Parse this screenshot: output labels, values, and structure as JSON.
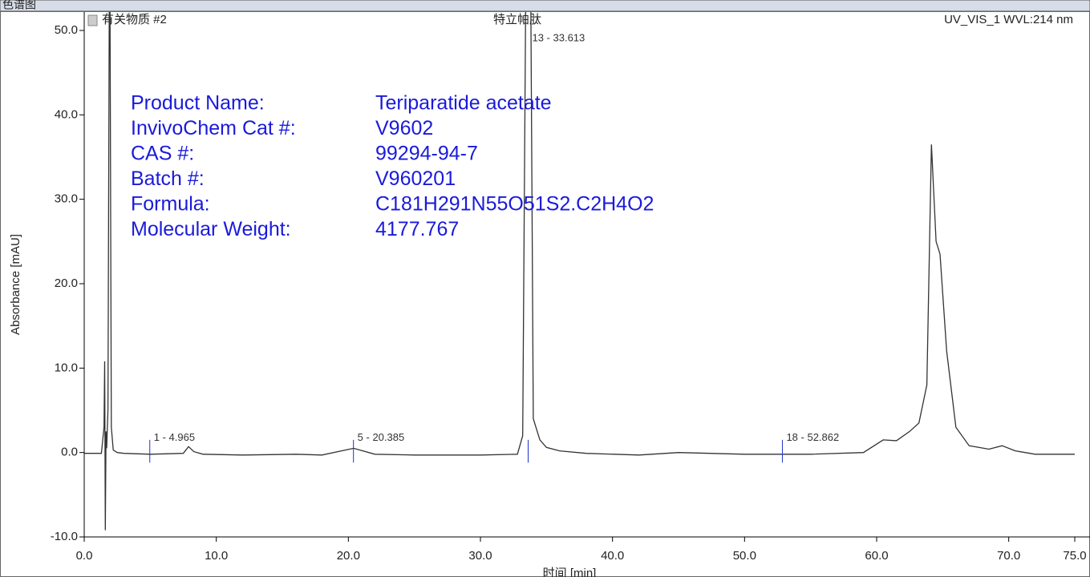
{
  "window_title": "色谱图",
  "chart_data": {
    "type": "line",
    "sample_label": "有关物质 #2",
    "title": "特立帕肽",
    "detector_label": "UV_VIS_1 WVL:214 nm",
    "x_label": "时间 [min]",
    "y_label": "Absorbance [mAU]",
    "xlim": [
      0,
      75
    ],
    "ylim": [
      -10,
      50
    ],
    "xticks": [
      {
        "value": 0,
        "label": "0.0"
      },
      {
        "value": 10,
        "label": "10.0"
      },
      {
        "value": 20,
        "label": "20.0"
      },
      {
        "value": 30,
        "label": "30.0"
      },
      {
        "value": 40,
        "label": "40.0"
      },
      {
        "value": 50,
        "label": "50.0"
      },
      {
        "value": 60,
        "label": "60.0"
      },
      {
        "value": 70,
        "label": "70.0"
      },
      {
        "value": 75,
        "label": "75.0"
      }
    ],
    "yticks": [
      {
        "value": -10,
        "label": "-10.0"
      },
      {
        "value": 0,
        "label": "0.0"
      },
      {
        "value": 10,
        "label": "10.0"
      },
      {
        "value": 20,
        "label": "20.0"
      },
      {
        "value": 30,
        "label": "30.0"
      },
      {
        "value": 40,
        "label": "40.0"
      },
      {
        "value": 50,
        "label": "50.0"
      }
    ],
    "series": [
      {
        "name": "UV_VIS_1",
        "color": "#333333",
        "x": [
          0,
          1.3,
          1.5,
          1.55,
          1.6,
          1.65,
          1.7,
          1.8,
          1.9,
          1.95,
          2.05,
          2.2,
          2.5,
          3,
          5,
          7.5,
          7.9,
          8.3,
          9,
          12,
          16,
          18,
          20.4,
          22,
          25,
          30,
          32.8,
          33.2,
          33.5,
          33.75,
          34,
          34.5,
          35,
          36,
          38,
          42,
          45,
          50,
          55,
          59,
          60.5,
          61.5,
          62.5,
          63.2,
          63.8,
          64.15,
          64.5,
          64.8,
          65.3,
          66,
          67,
          68.5,
          69.5,
          70.5,
          72,
          75
        ],
        "values": [
          -0.1,
          -0.1,
          3,
          10.8,
          -9.2,
          2.5,
          0.5,
          5,
          55,
          55,
          3,
          0.3,
          0,
          -0.1,
          -0.2,
          -0.1,
          0.7,
          0.1,
          -0.2,
          -0.3,
          -0.2,
          -0.3,
          0.5,
          -0.2,
          -0.3,
          -0.3,
          -0.2,
          2,
          70,
          70,
          4,
          1.5,
          0.6,
          0.2,
          -0.1,
          -0.3,
          0,
          -0.2,
          -0.2,
          0,
          1.5,
          1.4,
          2.5,
          3.5,
          8,
          36.5,
          25,
          23.5,
          12,
          3,
          0.8,
          0.4,
          0.8,
          0.2,
          -0.2,
          -0.2
        ]
      }
    ],
    "peak_labels": [
      {
        "text": "1 - 4.965",
        "x": 4.965
      },
      {
        "text": "5 - 20.385",
        "x": 20.385
      },
      {
        "text": "13 - 33.613",
        "x": 33.613
      },
      {
        "text": "18 - 52.862",
        "x": 52.862
      }
    ],
    "product_info": [
      {
        "label": "Product Name:",
        "value": "Teriparatide acetate"
      },
      {
        "label": "InvivoChem Cat #:",
        "value": "V9602"
      },
      {
        "label": "CAS #:",
        "value": "99294-94-7"
      },
      {
        "label": "Batch #:",
        "value": "V960201"
      },
      {
        "label": "Formula:",
        "value": "C181H291N55O51S2.C2H4O2"
      },
      {
        "label": "Molecular Weight:",
        "value": "4177.767"
      }
    ]
  }
}
